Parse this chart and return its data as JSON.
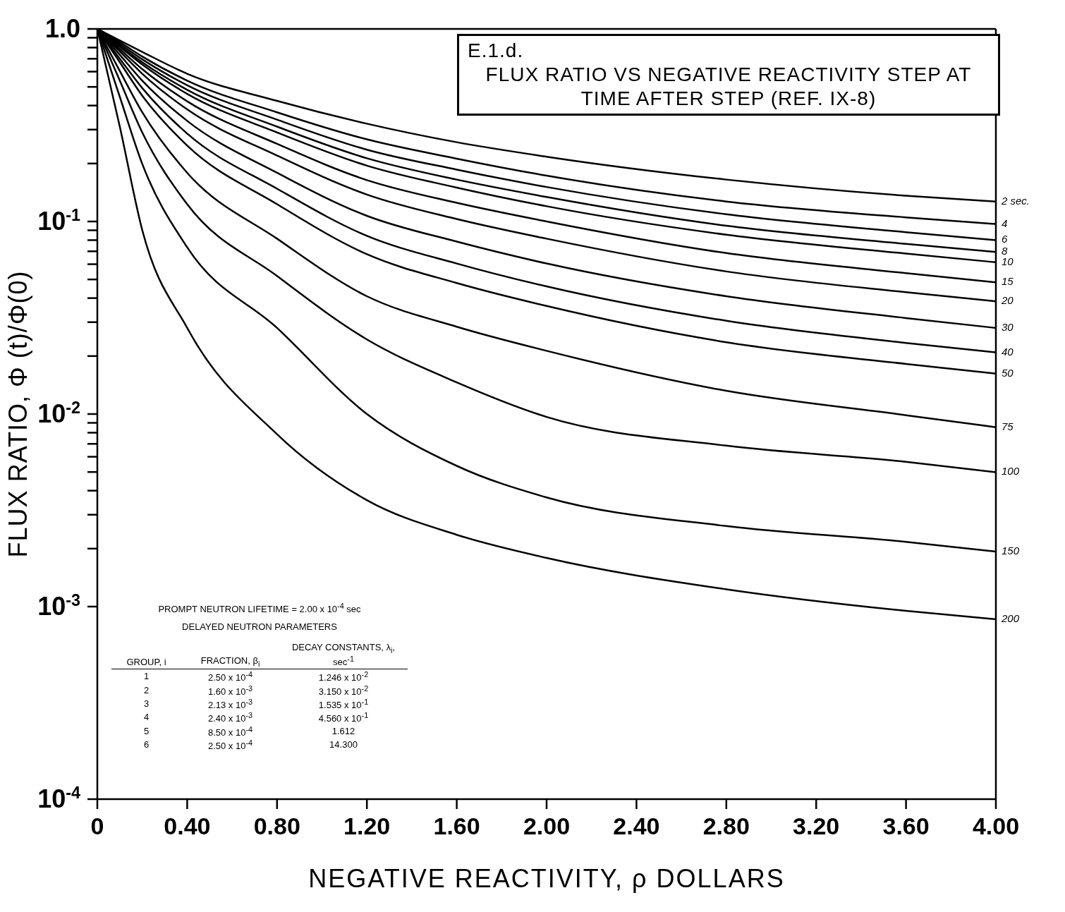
{
  "chart_data": {
    "type": "line",
    "title": "FLUX RATIO VS NEGATIVE REACTIVITY STEP AT TIME AFTER STEP (REF. IX-8)",
    "subtitle": "E.1.d.",
    "xlabel": "NEGATIVE REACTIVITY, ρ  DOLLARS",
    "ylabel": "FLUX RATIO, Φ (t)/Φ(0)",
    "log": "y",
    "marker": "none",
    "line_style": "solid",
    "x": [
      0,
      0.1,
      0.2,
      0.4,
      0.8,
      1.2,
      1.6,
      2.0,
      2.8,
      3.6,
      4.0
    ],
    "xlim": [
      0,
      4
    ],
    "xticks": [
      0,
      {
        "value": 0.4,
        "label": "0.40"
      },
      {
        "value": 0.8,
        "label": "0.80"
      },
      {
        "value": 1.2,
        "label": "1.20"
      },
      {
        "value": 1.6,
        "label": "1.60"
      },
      {
        "value": 2,
        "label": "2.00"
      },
      {
        "value": 2.4,
        "label": "2.40"
      },
      {
        "value": 2.8,
        "label": "2.80"
      },
      {
        "value": 3.2,
        "label": "3.20"
      },
      {
        "value": 3.6,
        "label": "3.60"
      },
      {
        "value": 4,
        "label": "4.00"
      }
    ],
    "ylim": [
      0.0001,
      1
    ],
    "yticks": [
      {
        "value": 1,
        "label": "1.0"
      },
      {
        "value": 0.9,
        "label": null
      },
      {
        "value": 0.8,
        "label": null
      },
      {
        "value": 0.7,
        "label": null
      },
      {
        "value": 0.6,
        "label": null
      },
      {
        "value": 0.5,
        "label": null
      },
      {
        "value": 0.4,
        "label": null
      },
      {
        "value": 0.3,
        "label": null
      },
      {
        "value": 0.2,
        "label": null
      },
      {
        "value": 0.1,
        "label": "10$^{-1}$"
      },
      {
        "value": 0.09,
        "label": null
      },
      {
        "value": 0.08,
        "label": null
      },
      {
        "value": 0.07,
        "label": null
      },
      {
        "value": 0.06,
        "label": null
      },
      {
        "value": 0.05,
        "label": null
      },
      {
        "value": 0.04,
        "label": null
      },
      {
        "value": 0.03,
        "label": null
      },
      {
        "value": 0.02,
        "label": null
      },
      {
        "value": 0.01,
        "label": "10$^{-2}$"
      },
      {
        "value": 0.009,
        "label": null
      },
      {
        "value": 0.008,
        "label": null
      },
      {
        "value": 0.007,
        "label": null
      },
      {
        "value": 0.006,
        "label": null
      },
      {
        "value": 0.005,
        "label": null
      },
      {
        "value": 0.004,
        "label": null
      },
      {
        "value": 0.003,
        "label": null
      },
      {
        "value": 0.002,
        "label": null
      },
      {
        "value": 0.001,
        "label": "10$^{-3}$"
      },
      {
        "value": 0.0001,
        "label": "10$^{-4}$"
      }
    ],
    "series": [
      {
        "name": "2 sec.",
        "color": "#000000",
        "values": [
          1.0,
          0.871,
          0.76,
          0.585,
          0.423,
          0.322,
          0.258,
          0.217,
          0.165,
          0.136,
          0.127
        ]
      },
      {
        "name": "4",
        "color": "#000000",
        "values": [
          1.0,
          0.854,
          0.719,
          0.539,
          0.369,
          0.267,
          0.212,
          0.173,
          0.127,
          0.105,
          0.097
        ]
      },
      {
        "name": "6",
        "color": "#000000",
        "values": [
          1.0,
          0.836,
          0.695,
          0.51,
          0.338,
          0.236,
          0.186,
          0.151,
          0.109,
          0.088,
          0.08
        ]
      },
      {
        "name": "8",
        "color": "#000000",
        "values": [
          1.0,
          0.819,
          0.671,
          0.483,
          0.311,
          0.213,
          0.165,
          0.134,
          0.095,
          0.0765,
          0.0695
        ]
      },
      {
        "name": "10",
        "color": "#000000",
        "values": [
          1.0,
          0.808,
          0.653,
          0.46,
          0.29,
          0.195,
          0.15,
          0.12,
          0.0854,
          0.0681,
          0.0614
        ]
      },
      {
        "name": "15",
        "color": "#000000",
        "values": [
          1.0,
          0.786,
          0.618,
          0.421,
          0.253,
          0.164,
          0.125,
          0.1,
          0.0685,
          0.0539,
          0.0483
        ]
      },
      {
        "name": "20",
        "color": "#000000",
        "values": [
          1.0,
          0.765,
          0.585,
          0.382,
          0.22,
          0.138,
          0.103,
          0.0814,
          0.055,
          0.0429,
          0.0385
        ]
      },
      {
        "name": "30",
        "color": "#000000",
        "values": [
          1.0,
          0.734,
          0.539,
          0.333,
          0.179,
          0.107,
          0.0786,
          0.0605,
          0.0409,
          0.0315,
          0.028
        ]
      },
      {
        "name": "40",
        "color": "#000000",
        "values": [
          1.0,
          0.7,
          0.493,
          0.286,
          0.148,
          0.0842,
          0.0605,
          0.046,
          0.0305,
          0.0234,
          0.0209
        ]
      },
      {
        "name": "50",
        "color": "#000000",
        "values": [
          1.0,
          0.671,
          0.45,
          0.248,
          0.123,
          0.0676,
          0.0479,
          0.0364,
          0.0236,
          0.0182,
          0.0162
        ]
      },
      {
        "name": "75",
        "color": "#000000",
        "values": [
          1.0,
          0.605,
          0.369,
          0.179,
          0.0814,
          0.0409,
          0.0284,
          0.0213,
          0.0132,
          0.00986,
          0.00854
        ]
      },
      {
        "name": "100",
        "color": "#000000",
        "values": [
          1.0,
          0.539,
          0.29,
          0.123,
          0.0521,
          0.0244,
          0.0146,
          0.00966,
          0.00685,
          0.00565,
          0.00499
        ]
      },
      {
        "name": "150",
        "color": "#000000",
        "values": [
          1.0,
          0.444,
          0.199,
          0.0734,
          0.028,
          0.01,
          0.00538,
          0.00369,
          0.00262,
          0.00217,
          0.00193
        ]
      },
      {
        "name": "200",
        "color": "#000000",
        "values": [
          1.0,
          0.311,
          0.0902,
          0.028,
          0.00786,
          0.00357,
          0.00236,
          0.00179,
          0.00123,
          0.00095,
          0.00086
        ]
      }
    ],
    "annotations": [
      "PROMPT NEUTRON LIFETIME = 2.00 x 10$^{-4}$ sec",
      "DELAYED NEUTRON PARAMETERS",
      "GROUP, i",
      "FRACTION, β$_{i}$",
      "DECAY CONSTANTS, λ$_{i}$, sec$^{-1}$",
      "1",
      "2.50 x 10$^{-4}$",
      "1.246 x 10$^{-2}$",
      "2",
      "1.60 x 10$^{-3}$",
      "3.150 x 10$^{-2}$",
      "3",
      "2.13 x 10$^{-3}$",
      "1.535 x 10$^{-1}$",
      "4",
      "2.40 x 10$^{-3}$",
      "4.560 x 10$^{-1}$",
      "5",
      "8.50 x 10$^{-4}$",
      "1.612",
      "6",
      "2.50 x 10$^{-4}$",
      "14.300"
    ]
  }
}
